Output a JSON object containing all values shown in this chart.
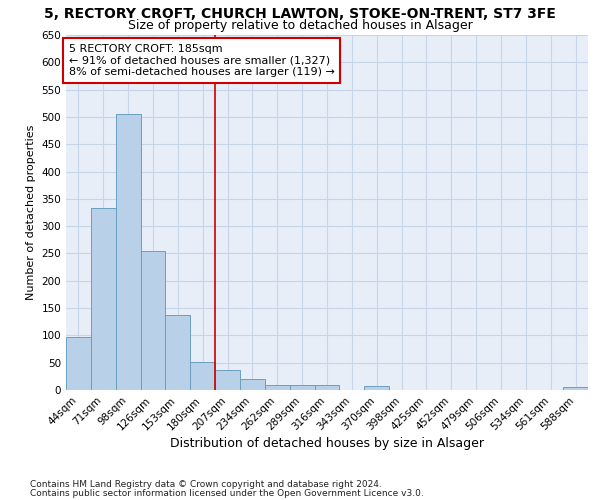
{
  "title1": "5, RECTORY CROFT, CHURCH LAWTON, STOKE-ON-TRENT, ST7 3FE",
  "title2": "Size of property relative to detached houses in Alsager",
  "xlabel": "Distribution of detached houses by size in Alsager",
  "ylabel": "Number of detached properties",
  "footnote1": "Contains HM Land Registry data © Crown copyright and database right 2024.",
  "footnote2": "Contains public sector information licensed under the Open Government Licence v3.0.",
  "bar_labels": [
    "44sqm",
    "71sqm",
    "98sqm",
    "126sqm",
    "153sqm",
    "180sqm",
    "207sqm",
    "234sqm",
    "262sqm",
    "289sqm",
    "316sqm",
    "343sqm",
    "370sqm",
    "398sqm",
    "425sqm",
    "452sqm",
    "479sqm",
    "506sqm",
    "534sqm",
    "561sqm",
    "588sqm"
  ],
  "bar_values": [
    97,
    333,
    505,
    254,
    138,
    52,
    36,
    21,
    10,
    10,
    10,
    0,
    7,
    0,
    0,
    0,
    0,
    0,
    0,
    0,
    5
  ],
  "bar_color": "#b8d0e8",
  "bar_edge_color": "#6a9fc0",
  "vline_color": "#cc0000",
  "annotation_text": "5 RECTORY CROFT: 185sqm\n← 91% of detached houses are smaller (1,327)\n8% of semi-detached houses are larger (119) →",
  "annotation_box_color": "white",
  "annotation_box_edge_color": "#cc0000",
  "ylim": [
    0,
    650
  ],
  "yticks": [
    0,
    50,
    100,
    150,
    200,
    250,
    300,
    350,
    400,
    450,
    500,
    550,
    600,
    650
  ],
  "grid_color": "#c8d4e8",
  "background_color": "#e8eef8",
  "title1_fontsize": 10,
  "title2_fontsize": 9,
  "xlabel_fontsize": 9,
  "ylabel_fontsize": 8,
  "tick_fontsize": 7.5,
  "annotation_fontsize": 8,
  "footnote_fontsize": 6.5
}
